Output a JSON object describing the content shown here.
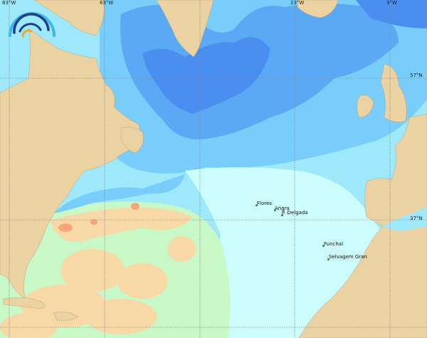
{
  "map": {
    "colors": {
      "land": "#ebd2a3",
      "ocean_light": "#ccfcfc",
      "ocean_cyan": "#9de9fb",
      "ocean_mid": "#78cdfa",
      "ocean_blue": "#5ba9f5",
      "ocean_deep": "#4a8ef0",
      "warm_green": "#c9f8c7",
      "warm_tan": "#f8d8a6",
      "warm_orange": "#f5a77a",
      "grid": "#8a8a8a",
      "place_dot": "#2a9a2a"
    },
    "logo_icon": "rainbow-arcs-logo",
    "grid_labels": {
      "lon": [
        "83°W",
        "63°W",
        "23°W",
        "3°W"
      ],
      "lat": [
        "57°N",
        "37°N"
      ]
    },
    "places": [
      {
        "name": "Flores"
      },
      {
        "name": "Angra"
      },
      {
        "name": "P. Delgada"
      },
      {
        "name": "Funchal"
      },
      {
        "name": "Selvagem Gran"
      }
    ]
  }
}
